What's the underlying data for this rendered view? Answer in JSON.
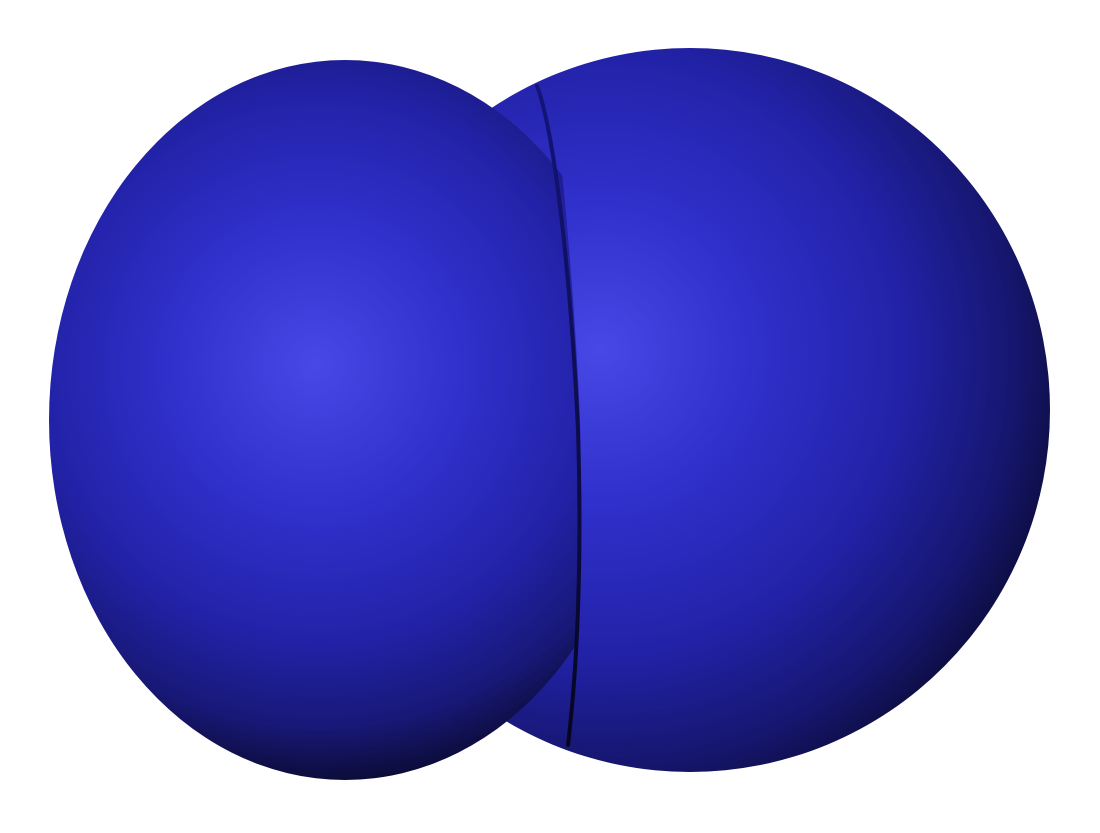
{
  "scene": {
    "subject": "space-filling-molecule-model",
    "atom_count": 2,
    "atoms": [
      {
        "name": "atom-left",
        "color": "#2e2ec8"
      },
      {
        "name": "atom-right",
        "color": "#2e2ec8"
      }
    ],
    "colors": {
      "background": "#ffffff",
      "highlight": "#4848e6",
      "base": "#2424b4",
      "shadow": "#0a0a30"
    }
  }
}
